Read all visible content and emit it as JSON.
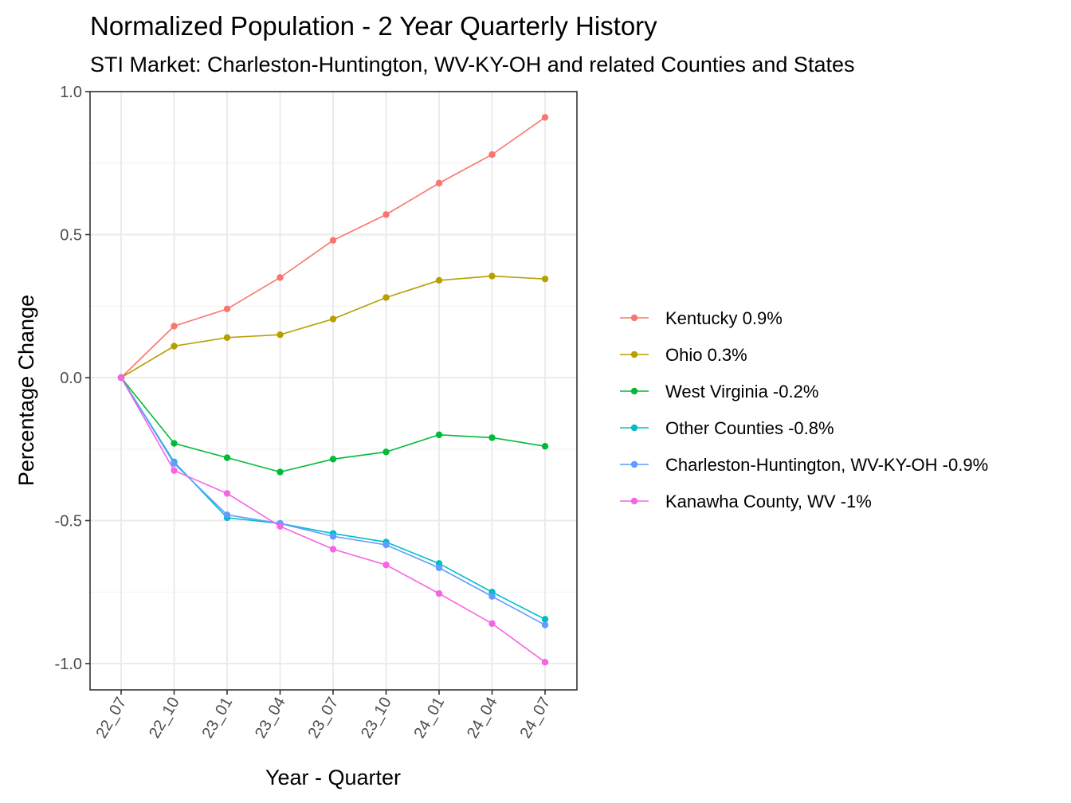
{
  "chart_data": {
    "type": "line",
    "title": "Normalized Population - 2 Year Quarterly History",
    "subtitle": "STI Market: Charleston-Huntington, WV-KY-OH and related Counties and States",
    "xlabel": "Year - Quarter",
    "ylabel": "Percentage Change",
    "ylim": [
      -1.09,
      1.0
    ],
    "yticks": [
      -1.0,
      -0.5,
      0.0,
      0.5,
      1.0
    ],
    "ytick_labels": [
      "-1.0",
      "-0.5",
      "0.0",
      "0.5",
      "1.0"
    ],
    "categories": [
      "22_07",
      "22_10",
      "23_01",
      "23_04",
      "23_07",
      "23_10",
      "24_01",
      "24_04",
      "24_07"
    ],
    "grid": true,
    "legend_position": "right",
    "series": [
      {
        "name": "Kentucky 0.9%",
        "color": "#F8766D",
        "values": [
          0.0,
          0.18,
          0.24,
          0.35,
          0.48,
          0.57,
          0.68,
          0.78,
          0.91
        ]
      },
      {
        "name": "Ohio 0.3%",
        "color": "#B79F00",
        "values": [
          0.0,
          0.11,
          0.14,
          0.15,
          0.205,
          0.28,
          0.34,
          0.355,
          0.345
        ]
      },
      {
        "name": "West Virginia -0.2%",
        "color": "#00BA38",
        "values": [
          0.0,
          -0.23,
          -0.28,
          -0.33,
          -0.285,
          -0.26,
          -0.2,
          -0.21,
          -0.24
        ]
      },
      {
        "name": "Other Counties -0.8%",
        "color": "#00BFC4",
        "values": [
          0.0,
          -0.295,
          -0.49,
          -0.51,
          -0.545,
          -0.575,
          -0.65,
          -0.75,
          -0.845
        ]
      },
      {
        "name": "Charleston-Huntington, WV-KY-OH -0.9%",
        "color": "#619CFF",
        "values": [
          0.0,
          -0.3,
          -0.48,
          -0.51,
          -0.555,
          -0.585,
          -0.665,
          -0.765,
          -0.865
        ]
      },
      {
        "name": "Kanawha County, WV -1%",
        "color": "#F564E3",
        "values": [
          0.0,
          -0.325,
          -0.405,
          -0.52,
          -0.6,
          -0.655,
          -0.755,
          -0.86,
          -0.995
        ]
      }
    ]
  }
}
